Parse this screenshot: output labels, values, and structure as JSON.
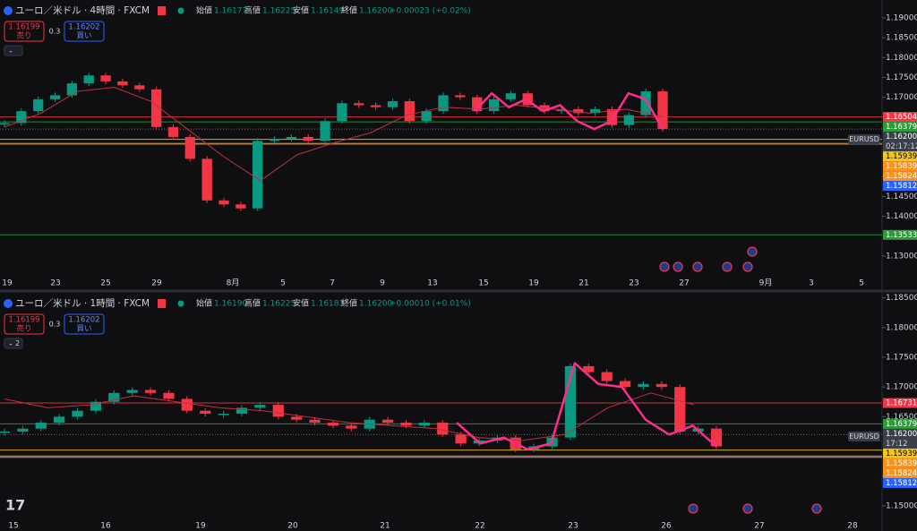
{
  "chart_data": [
    {
      "type": "candlestick",
      "title": "ユーロ／米ドル · 4時間 · FXCM",
      "ohlc": [
        {
          "label": "始値",
          "value": "1.16177"
        },
        {
          "label": "高値",
          "value": "1.16225"
        },
        {
          "label": "安値",
          "value": "1.16149"
        },
        {
          "label": "終値",
          "value": "1.16200"
        }
      ],
      "change": "+0.00023 (+0.02%)",
      "bid": {
        "price": "1.16199",
        "label": "売り"
      },
      "spread": "0.3",
      "ask": {
        "price": "1.16202",
        "label": "買い"
      },
      "ylim": [
        1.1257,
        1.1945
      ],
      "yticks": [
        {
          "value": 1.19,
          "label": "1.19000"
        },
        {
          "value": 1.185,
          "label": "1.18500"
        },
        {
          "value": 1.18,
          "label": "1.18000"
        },
        {
          "value": 1.175,
          "label": "1.17500"
        },
        {
          "value": 1.17,
          "label": "1.17000"
        },
        {
          "value": 1.15,
          "label": "1.15000"
        },
        {
          "value": 1.145,
          "label": "1.14500"
        },
        {
          "value": 1.14,
          "label": "1.14000"
        },
        {
          "value": 1.13,
          "label": "1.13000"
        }
      ],
      "xticks": [
        "19",
        "23",
        "25",
        "29",
        "8月",
        "5",
        "7",
        "9",
        "13",
        "15",
        "19",
        "21",
        "23",
        "27",
        "9月",
        "3",
        "5"
      ],
      "values": [
        1.1635,
        1.1665,
        1.1695,
        1.1705,
        1.1735,
        1.1755,
        1.174,
        1.173,
        1.172,
        1.1625,
        1.16,
        1.1545,
        1.144,
        1.143,
        1.142,
        1.159,
        1.1595,
        1.16,
        1.159,
        1.164,
        1.1685,
        1.168,
        1.1675,
        1.169,
        1.164,
        1.1665,
        1.1705,
        1.17,
        1.1665,
        1.1695,
        1.171,
        1.168,
        1.1665,
        1.167,
        1.166,
        1.167,
        1.163,
        1.1655,
        1.1715,
        1.162
      ],
      "ma": [
        1.1625,
        1.166,
        1.1715,
        1.1725,
        1.169,
        1.162,
        1.155,
        1.149,
        1.1555,
        1.1585,
        1.161,
        1.1655,
        1.1675,
        1.167,
        1.168,
        1.167,
        1.166,
        1.167,
        1.165
      ],
      "drawing": [
        1.1665,
        1.171,
        1.1675,
        1.1695,
        1.1665,
        1.168,
        1.164,
        1.162,
        1.164,
        1.171,
        1.1695,
        1.162
      ],
      "symbol": "EURUSD",
      "countdown": "02:17:12",
      "price_lines": [
        {
          "value": 1.16504,
          "label": "1.16504",
          "color": "#f23645"
        },
        {
          "value": 1.16379,
          "label": "1.16379",
          "color": "#2e9b3a"
        },
        {
          "value": 1.162,
          "label": "1.16200",
          "color": "#3a3f4a"
        },
        {
          "value": 1.15939,
          "label": "1.15939",
          "color": "#f5c518"
        },
        {
          "value": 1.15839,
          "label": "1.15839",
          "color": "#f7931e"
        },
        {
          "value": 1.15824,
          "label": "1.15824",
          "color": "#f7931e"
        },
        {
          "value": 1.15812,
          "label": "1.15812",
          "color": "#2962ff"
        },
        {
          "value": 1.13533,
          "label": "1.13533",
          "color": "#2e9b3a"
        }
      ]
    },
    {
      "type": "candlestick",
      "title": "ユーロ／米ドル · 1時間 · FXCM",
      "ohlc": [
        {
          "label": "始値",
          "value": "1.16190"
        },
        {
          "label": "高値",
          "value": "1.16225"
        },
        {
          "label": "安値",
          "value": "1.16183"
        },
        {
          "label": "終値",
          "value": "1.16200"
        }
      ],
      "change": "+0.00010 (+0.01%)",
      "bid": {
        "price": "1.16199",
        "label": "売り"
      },
      "spread": "0.3",
      "ask": {
        "price": "1.16202",
        "label": "買い"
      },
      "collapse": "2",
      "ylim": [
        1.14849,
        1.18584
      ],
      "yticks": [
        {
          "value": 1.185,
          "label": "1.18500"
        },
        {
          "value": 1.18,
          "label": "1.18000"
        },
        {
          "value": 1.175,
          "label": "1.17500"
        },
        {
          "value": 1.17,
          "label": "1.17000"
        },
        {
          "value": 1.165,
          "label": "1.16500"
        },
        {
          "value": 1.155,
          "label": "1.15500"
        },
        {
          "value": 1.15,
          "label": "1.15000"
        }
      ],
      "xticks": [
        "15",
        "16",
        "19",
        "20",
        "21",
        "22",
        "23",
        "26",
        "27",
        "28"
      ],
      "values": [
        1.1625,
        1.163,
        1.164,
        1.165,
        1.166,
        1.1675,
        1.169,
        1.1695,
        1.169,
        1.168,
        1.166,
        1.1655,
        1.1655,
        1.1665,
        1.167,
        1.165,
        1.1645,
        1.164,
        1.1635,
        1.163,
        1.1645,
        1.164,
        1.1635,
        1.164,
        1.162,
        1.1605,
        1.161,
        1.1615,
        1.1595,
        1.16,
        1.1615,
        1.1735,
        1.1725,
        1.171,
        1.17,
        1.1705,
        1.17,
        1.1625,
        1.163,
        1.16
      ],
      "ma": [
        1.168,
        1.1665,
        1.167,
        1.1685,
        1.1675,
        1.1665,
        1.166,
        1.165,
        1.164,
        1.1635,
        1.163,
        1.1615,
        1.161,
        1.162,
        1.1665,
        1.169,
        1.167
      ],
      "drawing": [
        1.164,
        1.1605,
        1.1615,
        1.1595,
        1.1605,
        1.174,
        1.1705,
        1.17,
        1.1645,
        1.162,
        1.1635,
        1.16
      ],
      "symbol": "EURUSD",
      "countdown": "17:12",
      "price_lines": [
        {
          "value": 1.16731,
          "label": "1.16731",
          "color": "#f23645"
        },
        {
          "value": 1.16379,
          "label": "1.16379",
          "color": "#2e9b3a"
        },
        {
          "value": 1.162,
          "label": "1.16200",
          "color": "#3a3f4a"
        },
        {
          "value": 1.15939,
          "label": "1.15939",
          "color": "#f5c518"
        },
        {
          "value": 1.15839,
          "label": "1.15839",
          "color": "#f7931e"
        },
        {
          "value": 1.15824,
          "label": "1.15824",
          "color": "#f7931e"
        },
        {
          "value": 1.15812,
          "label": "1.15812",
          "color": "#2962ff"
        }
      ]
    }
  ]
}
